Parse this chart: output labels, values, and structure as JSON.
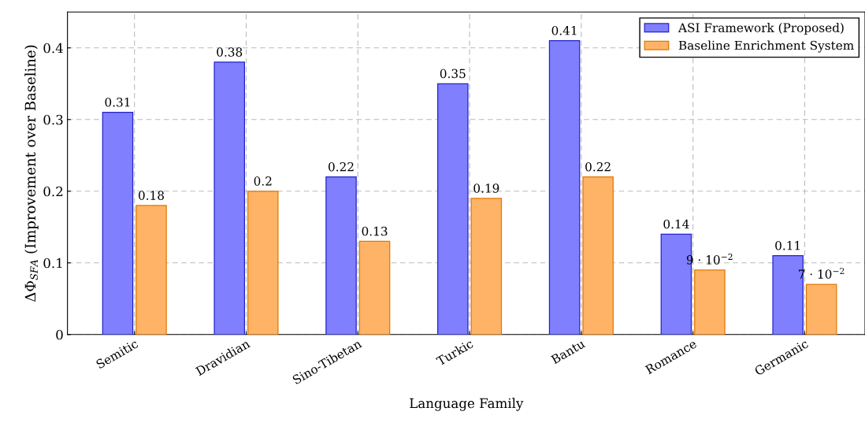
{
  "chart_data": {
    "type": "bar",
    "xlabel": "Language Family",
    "ylabel": "ΔΦ$_{SFA}$ (Improvement over Baseline)",
    "categories": [
      "Semitic",
      "Dravidian",
      "Sino-Tibetan",
      "Turkic",
      "Bantu",
      "Romance",
      "Germanic"
    ],
    "series": [
      {
        "name": "ASI Framework (Proposed)",
        "color": "#8080ff",
        "values": [
          0.31,
          0.38,
          0.22,
          0.35,
          0.41,
          0.14,
          0.11
        ],
        "value_labels": [
          "0.31",
          "0.38",
          "0.22",
          "0.35",
          "0.41",
          "0.14",
          "0.11"
        ]
      },
      {
        "name": "Baseline Enrichment System",
        "color": "#ffb366",
        "values": [
          0.18,
          0.2,
          0.13,
          0.19,
          0.22,
          0.09,
          0.07
        ],
        "value_labels": [
          "0.18",
          "0.2",
          "0.13",
          "0.19",
          "0.22",
          "9 · 10$^{−2}$",
          "7 · 10$^{−2}$"
        ]
      }
    ],
    "ylim": [
      0,
      0.45
    ],
    "yticks": [
      0,
      0.1,
      0.2,
      0.3,
      0.4
    ],
    "grid": true,
    "legend": "top right"
  }
}
